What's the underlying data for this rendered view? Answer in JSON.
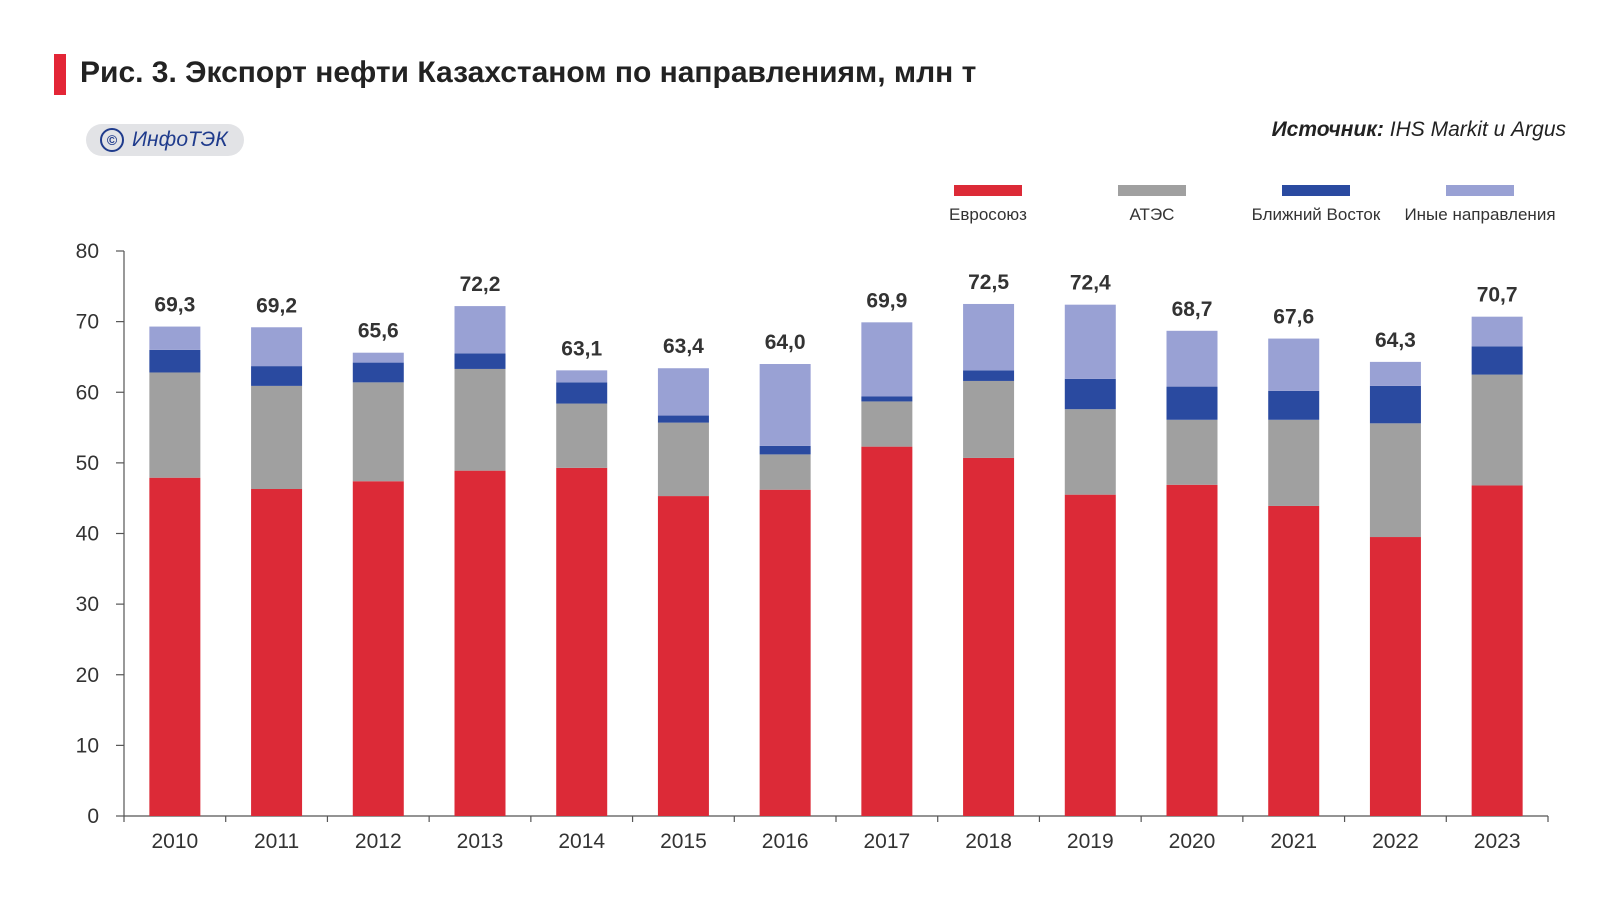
{
  "header": {
    "title": "Рис. 3. Экспорт нефти Казахстаном по направлениям, млн т",
    "badge": "ИнфоТЭК",
    "copyright_symbol": "©",
    "source_label": "Источник:",
    "source_text": "IHS Markit и Argus"
  },
  "chart_data": {
    "type": "bar",
    "stacked": true,
    "title": "Рис. 3. Экспорт нефти Казахстаном по направлениям, млн т",
    "xlabel": "",
    "ylabel": "",
    "ylim": [
      0,
      80
    ],
    "yticks": [
      0,
      10,
      20,
      30,
      40,
      50,
      60,
      70,
      80
    ],
    "legend_position": "top-right",
    "categories": [
      "2010",
      "2011",
      "2012",
      "2013",
      "2014",
      "2015",
      "2016",
      "2017",
      "2018",
      "2019",
      "2020",
      "2021",
      "2022",
      "2023"
    ],
    "series": [
      {
        "name": "Евросоюз",
        "color": "#dc2a37",
        "values": [
          47.9,
          46.3,
          47.4,
          48.9,
          49.3,
          45.3,
          46.2,
          52.3,
          50.7,
          45.5,
          46.9,
          43.9,
          39.5,
          46.8
        ]
      },
      {
        "name": "АТЭС",
        "color": "#a0a0a0",
        "values": [
          14.9,
          14.6,
          14.0,
          14.4,
          9.1,
          10.4,
          5.0,
          6.4,
          10.9,
          12.1,
          9.2,
          12.2,
          16.1,
          15.7
        ]
      },
      {
        "name": "Ближний Восток",
        "color": "#2a4aa0",
        "values": [
          3.2,
          2.8,
          2.8,
          2.2,
          3.0,
          1.0,
          1.2,
          0.7,
          1.5,
          4.3,
          4.7,
          4.1,
          5.3,
          4.0
        ]
      },
      {
        "name": "Иные направления",
        "color": "#99a1d4",
        "values": [
          3.3,
          5.5,
          1.4,
          6.7,
          1.7,
          6.7,
          11.6,
          10.5,
          9.4,
          10.5,
          7.9,
          7.4,
          3.4,
          4.2
        ]
      }
    ],
    "totals": [
      "69,3",
      "69,2",
      "65,6",
      "72,2",
      "63,1",
      "63,4",
      "64,0",
      "69,9",
      "72,5",
      "72,4",
      "68,7",
      "67,6",
      "64,3",
      "70,7"
    ]
  }
}
